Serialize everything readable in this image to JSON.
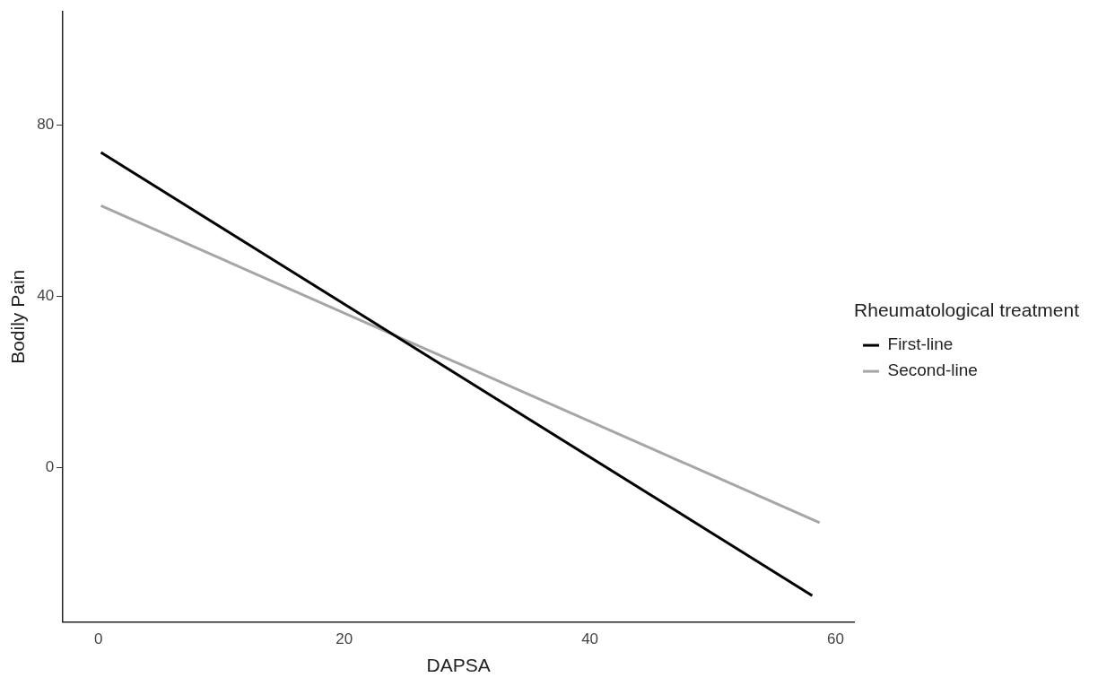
{
  "chart_data": {
    "type": "line",
    "xlabel": "DAPSA",
    "ylabel": "Bodily Pain",
    "legend_title": "Rheumatological treatment",
    "series": [
      {
        "name": "First-line",
        "color": "#000000",
        "x": [
          0.2,
          58.1
        ],
        "values": [
          73.5,
          -29.8
        ]
      },
      {
        "name": "Second-line",
        "color": "#a6a6a6",
        "x": [
          0.2,
          58.7
        ],
        "values": [
          61.1,
          -12.8
        ]
      }
    ],
    "xlim": [
      -2.9,
      61.5
    ],
    "xticks": [
      0,
      20,
      40,
      60
    ],
    "ylim": [
      -35.9,
      106.3
    ],
    "yticks": [
      0,
      40,
      80
    ],
    "grid": false,
    "legend": "right",
    "marker": "none",
    "line_style": "solid"
  }
}
